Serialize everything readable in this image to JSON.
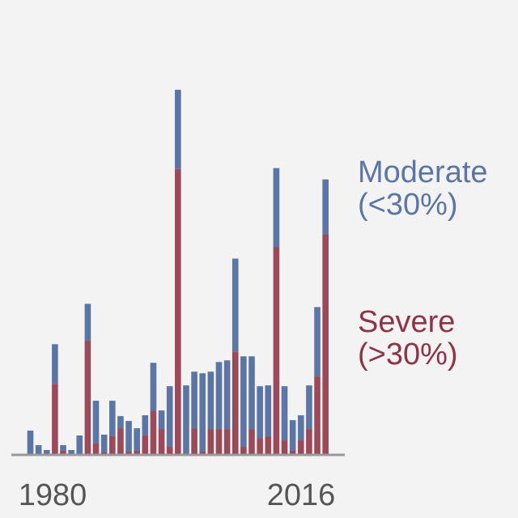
{
  "chart_data": {
    "type": "bar",
    "stacked": true,
    "x_start": 1977,
    "x_end": 2016,
    "x_tick_labels": [
      "1980",
      "2016"
    ],
    "x_ticks": [
      1980,
      2016
    ],
    "ylim": [
      0,
      1
    ],
    "series": [
      {
        "name": "Severe (>30%)",
        "color": "#9b4a5a",
        "values": [
          0,
          0,
          0,
          0.176,
          0.01,
          0,
          0,
          0.284,
          0.028,
          0.006,
          0.046,
          0.066,
          0.008,
          0.01,
          0.048,
          0.11,
          0.064,
          0.02,
          0.708,
          0,
          0.066,
          0.008,
          0.064,
          0.064,
          0.064,
          0.256,
          0.02,
          0.064,
          0.04,
          0.046,
          0.514,
          0.036,
          0.01,
          0.036,
          0.064,
          0.194,
          0.546
        ]
      },
      {
        "name": "Moderate (<30%)",
        "color": "#5b75a5",
        "values": [
          0.06,
          0.024,
          0.012,
          0.098,
          0.014,
          0.012,
          0.048,
          0.09,
          0.106,
          0.044,
          0.088,
          0.03,
          0.076,
          0.056,
          0.05,
          0.118,
          0.046,
          0.15,
          0.196,
          0.172,
          0.14,
          0.194,
          0.142,
          0.166,
          0.17,
          0.23,
          0.224,
          0.18,
          0.13,
          0.126,
          0.196,
          0.134,
          0.076,
          0.062,
          0.108,
          0.172,
          0.136
        ]
      }
    ],
    "legend_placement": "right",
    "grid": false
  }
}
